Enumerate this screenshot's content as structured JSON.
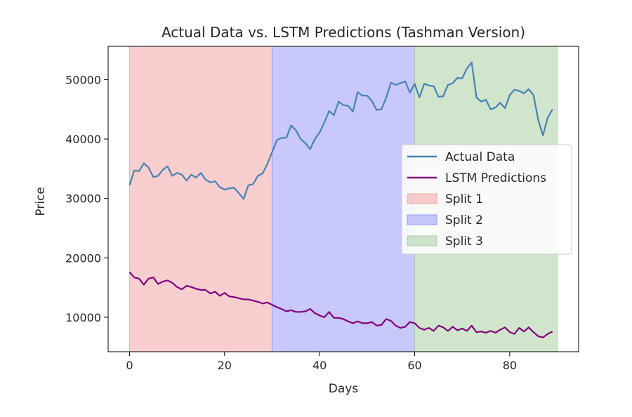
{
  "chart_data": {
    "type": "line",
    "title": "Actual Data vs. LSTM Predictions (Tashman Version)",
    "xlabel": "Days",
    "ylabel": "Price",
    "xlim": [
      -4.5,
      94.5
    ],
    "ylim": [
      4200,
      55600
    ],
    "xticks": [
      0,
      20,
      40,
      60,
      80
    ],
    "yticks": [
      10000,
      20000,
      30000,
      40000,
      50000
    ],
    "grid": false,
    "legend_position": "center-right",
    "regions": [
      {
        "name": "Split 1",
        "x_start": 0,
        "x_end": 30,
        "color": "#f4a6a6"
      },
      {
        "name": "Split 2",
        "x_start": 30,
        "x_end": 60,
        "color": "#9a9af5"
      },
      {
        "name": "Split 3",
        "x_start": 60,
        "x_end": 90,
        "color": "#a9cfa3"
      }
    ],
    "series": [
      {
        "name": "Actual Data",
        "color": "#4682b4",
        "x": [
          0,
          1,
          2,
          3,
          4,
          5,
          6,
          7,
          8,
          9,
          10,
          11,
          12,
          13,
          14,
          15,
          16,
          17,
          18,
          19,
          20,
          21,
          22,
          23,
          24,
          25,
          26,
          27,
          28,
          29,
          30,
          31,
          32,
          33,
          34,
          35,
          36,
          37,
          38,
          39,
          40,
          41,
          42,
          43,
          44,
          45,
          46,
          47,
          48,
          49,
          50,
          51,
          52,
          53,
          54,
          55,
          56,
          57,
          58,
          59,
          60,
          61,
          62,
          63,
          64,
          65,
          66,
          67,
          68,
          69,
          70,
          71,
          72,
          73,
          74,
          75,
          76,
          77,
          78,
          79,
          80,
          81,
          82,
          83,
          84,
          85,
          86,
          87,
          88,
          89
        ],
        "values": [
          32200,
          34700,
          34600,
          35900,
          35200,
          33600,
          33800,
          34800,
          35400,
          33800,
          34300,
          34000,
          33000,
          34000,
          33500,
          34300,
          33200,
          32700,
          32900,
          31900,
          31500,
          31700,
          31800,
          30900,
          29900,
          32200,
          32400,
          33800,
          34200,
          35800,
          37800,
          39800,
          40200,
          40200,
          42300,
          41500,
          40000,
          39300,
          38300,
          40000,
          41100,
          42800,
          44700,
          44000,
          46300,
          45700,
          45600,
          44600,
          47900,
          47300,
          47300,
          46400,
          44900,
          45000,
          46900,
          49500,
          49100,
          49400,
          49700,
          47800,
          49300,
          47000,
          49300,
          49000,
          48900,
          47100,
          47200,
          49100,
          49400,
          50300,
          50200,
          51900,
          52900,
          47000,
          46300,
          46600,
          45000,
          45300,
          46100,
          45200,
          47400,
          48300,
          48100,
          47700,
          48400,
          47400,
          43200,
          40600,
          43600,
          45000
        ]
      },
      {
        "name": "LSTM Predictions",
        "color": "#800080",
        "x": [
          0,
          1,
          2,
          3,
          4,
          5,
          6,
          7,
          8,
          9,
          10,
          11,
          12,
          13,
          14,
          15,
          16,
          17,
          18,
          19,
          20,
          21,
          22,
          23,
          24,
          25,
          26,
          27,
          28,
          29,
          30,
          31,
          32,
          33,
          34,
          35,
          36,
          37,
          38,
          39,
          40,
          41,
          42,
          43,
          44,
          45,
          46,
          47,
          48,
          49,
          50,
          51,
          52,
          53,
          54,
          55,
          56,
          57,
          58,
          59,
          60,
          61,
          62,
          63,
          64,
          65,
          66,
          67,
          68,
          69,
          70,
          71,
          72,
          73,
          74,
          75,
          76,
          77,
          78,
          79,
          80,
          81,
          82,
          83,
          84,
          85,
          86,
          87,
          88,
          89
        ],
        "values": [
          17600,
          16700,
          16500,
          15500,
          16500,
          16700,
          15600,
          16000,
          16200,
          15800,
          15100,
          14700,
          15300,
          15100,
          14800,
          14600,
          14600,
          14000,
          14300,
          13600,
          14100,
          13500,
          13400,
          13200,
          13000,
          13000,
          12800,
          12600,
          12300,
          12500,
          12100,
          11700,
          11400,
          11000,
          11200,
          10900,
          10900,
          11000,
          11400,
          10700,
          10300,
          10000,
          10900,
          9900,
          9900,
          9700,
          9300,
          9000,
          9300,
          9000,
          9000,
          9200,
          8600,
          8700,
          9700,
          9400,
          8600,
          8200,
          8400,
          9200,
          9000,
          8200,
          7900,
          8200,
          7700,
          8600,
          8300,
          7700,
          8400,
          7800,
          8100,
          7700,
          8600,
          7500,
          7600,
          7400,
          7700,
          7400,
          7900,
          8300,
          7500,
          7200,
          8200,
          7600,
          8300,
          7500,
          6800,
          6600,
          7200,
          7600
        ]
      }
    ]
  }
}
